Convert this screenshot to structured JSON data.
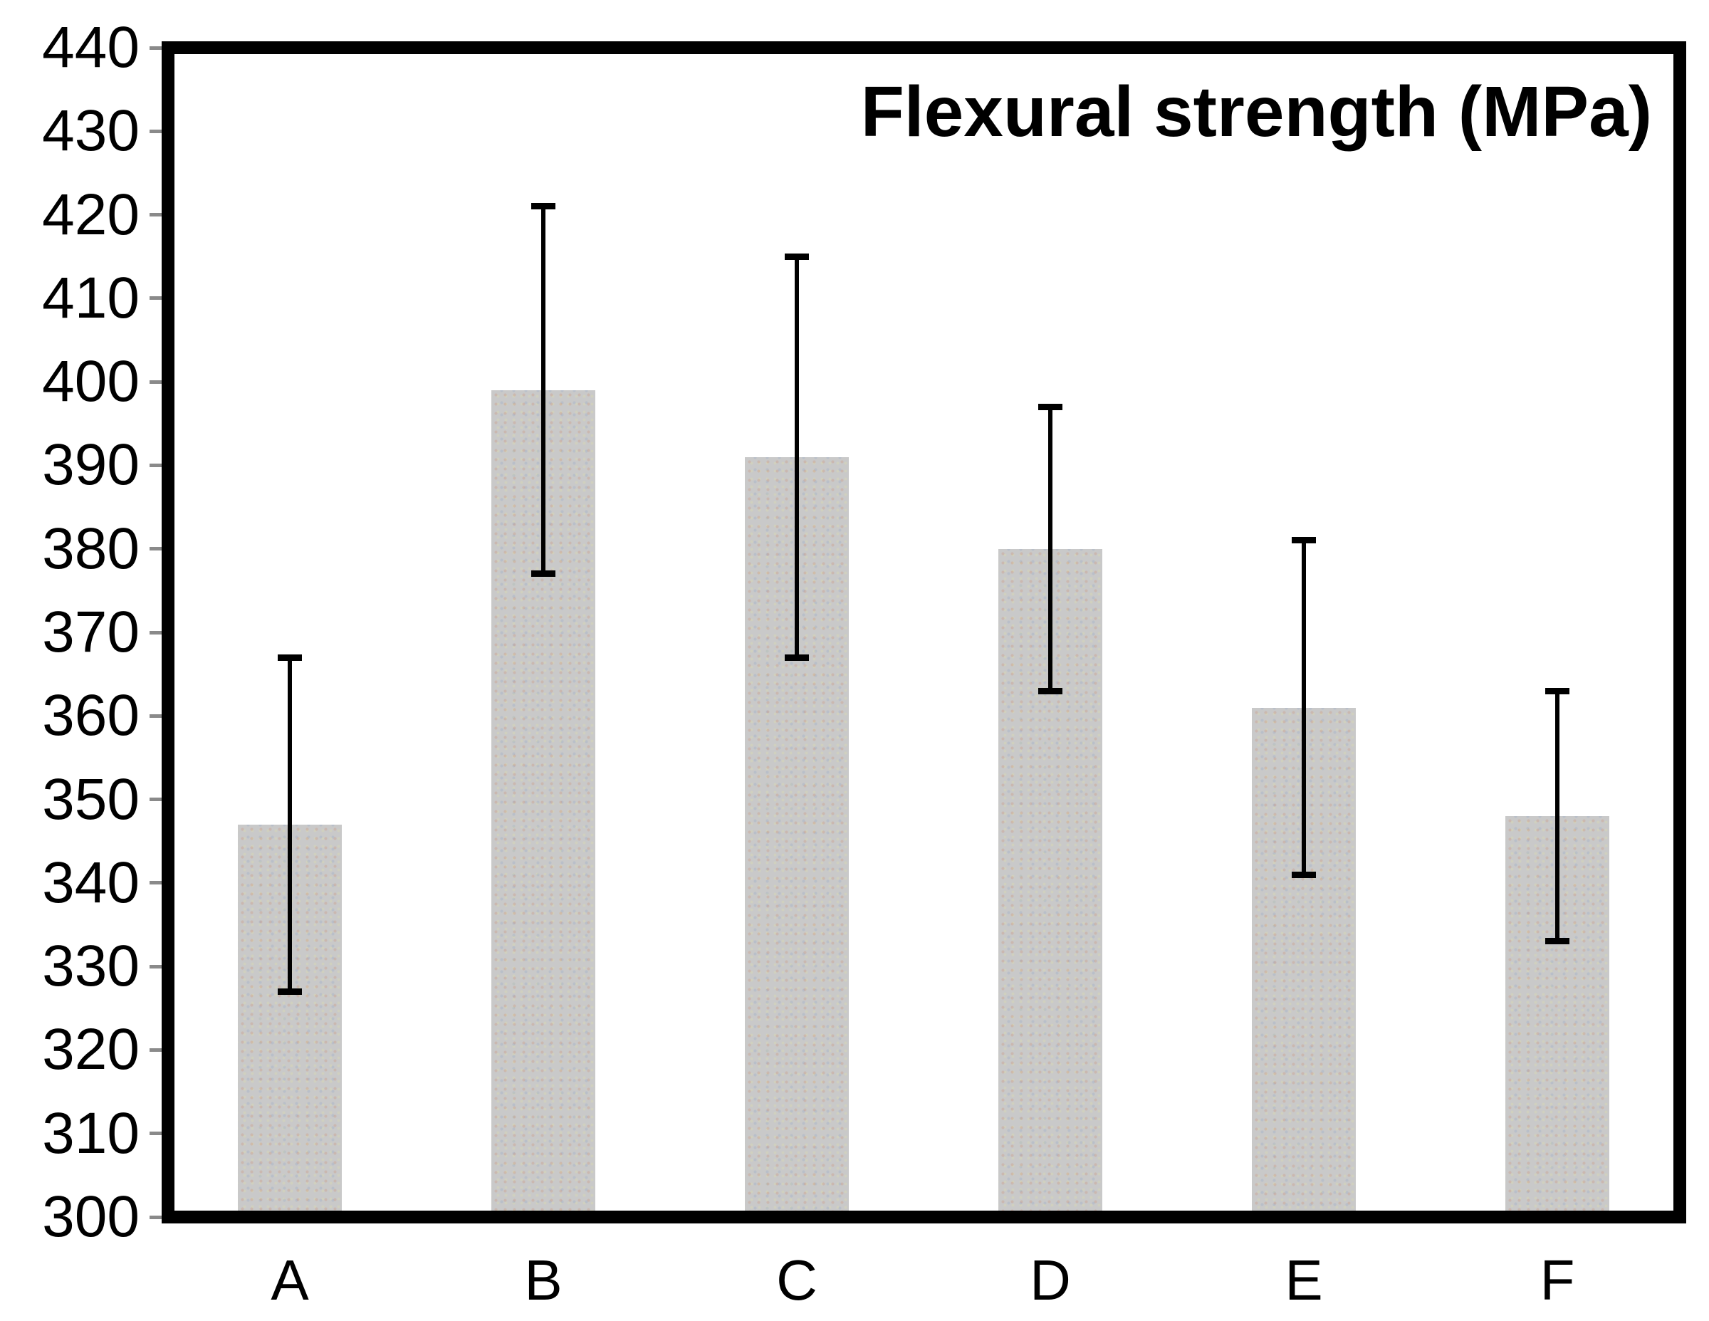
{
  "chart_data": {
    "type": "bar",
    "title": "Flexural strength (MPa)",
    "categories": [
      "A",
      "B",
      "C",
      "D",
      "E",
      "F"
    ],
    "values": [
      347,
      399,
      391,
      380,
      361,
      348
    ],
    "error_bars": [
      20,
      22,
      24,
      17,
      20,
      15
    ],
    "error_whisker_tops": [
      367,
      421,
      415,
      397,
      381,
      363
    ],
    "error_whisker_bottoms": [
      327,
      377,
      367,
      363,
      341,
      333
    ],
    "xlabel": "",
    "ylabel": "",
    "ylim": [
      300,
      440
    ],
    "ytick_step": 10,
    "y_tick_labels": [
      "440",
      "430",
      "420",
      "410",
      "400",
      "390",
      "380",
      "370",
      "360",
      "350",
      "340",
      "330",
      "320",
      "310",
      "300"
    ],
    "grid": false,
    "legend": "none",
    "title_position": "inside-top-right"
  },
  "colors": {
    "background": "#ffffff",
    "bar_fill": "#c9c9c9",
    "error_bar": "#000000",
    "axis_frame": "#000000",
    "tick_mark": "#8a8a8a",
    "text": "#000000"
  }
}
